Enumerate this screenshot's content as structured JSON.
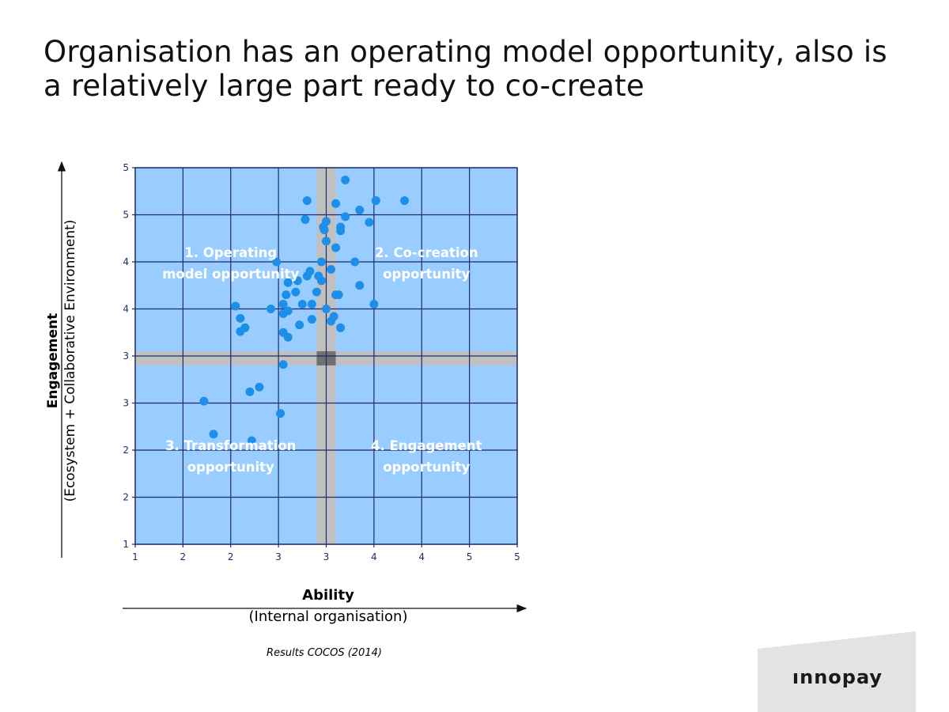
{
  "slide": {
    "title_line1": "Organisation has an operating model opportunity, also is",
    "title_line2": "a relatively large part ready to co-create",
    "source": "Results COCOS (2014)",
    "logo_text": "ınnopay"
  },
  "axes": {
    "x_title": "Ability",
    "x_subtitle": "(Internal organisation)",
    "y_title": "Engagement",
    "y_subtitle": "(Ecosystem + Collaborative Environment)"
  },
  "colors": {
    "plot_bg": "#99ccff",
    "grid": "#1f2a6b",
    "band": "#c0c0c0",
    "band_center": "#707070",
    "point": "#1e8fe8",
    "quadrant_label": "#ffffff"
  },
  "chart_data": {
    "type": "scatter",
    "title": "",
    "xlabel": "Ability",
    "ylabel": "Engagement",
    "xlim": [
      1,
      5
    ],
    "ylim": [
      1,
      5
    ],
    "x_ticks": [
      1,
      1.5,
      2,
      2.5,
      3,
      3.5,
      4,
      4.5,
      5
    ],
    "y_ticks": [
      1,
      1.5,
      2,
      2.5,
      3,
      3.5,
      4,
      4.5,
      5
    ],
    "x_tick_labels": [
      "1",
      "2",
      "2",
      "3",
      "3",
      "4",
      "4",
      "5",
      "5"
    ],
    "y_tick_labels": [
      "1",
      "2",
      "2",
      "3",
      "3",
      "4",
      "4",
      "5",
      "5"
    ],
    "grid": true,
    "threshold_bands": {
      "x": [
        2.9,
        3.1
      ],
      "y": [
        2.9,
        3.05
      ]
    },
    "quadrants": [
      {
        "line1": "1. Operating",
        "line2": "model opportunity",
        "x": 2.0,
        "y": 4.0
      },
      {
        "line1": "2. Co-creation",
        "line2": "opportunity",
        "x": 4.05,
        "y": 4.0
      },
      {
        "line1": "3. Transformation",
        "line2": "opportunity",
        "x": 2.0,
        "y": 1.95
      },
      {
        "line1": "4. Engagement",
        "line2": "opportunity",
        "x": 4.05,
        "y": 1.95
      }
    ],
    "points": [
      [
        3.2,
        4.87
      ],
      [
        2.8,
        4.65
      ],
      [
        3.52,
        4.65
      ],
      [
        3.82,
        4.65
      ],
      [
        3.1,
        4.62
      ],
      [
        3.35,
        4.55
      ],
      [
        3.2,
        4.48
      ],
      [
        2.78,
        4.45
      ],
      [
        3.0,
        4.43
      ],
      [
        3.45,
        4.42
      ],
      [
        2.97,
        4.37
      ],
      [
        3.15,
        4.37
      ],
      [
        2.98,
        4.34
      ],
      [
        3.15,
        4.33
      ],
      [
        3.0,
        4.22
      ],
      [
        2.48,
        4.0
      ],
      [
        2.95,
        4.0
      ],
      [
        3.1,
        4.15
      ],
      [
        3.3,
        4.0
      ],
      [
        2.83,
        3.9
      ],
      [
        3.05,
        3.92
      ],
      [
        3.35,
        3.75
      ],
      [
        2.8,
        3.85
      ],
      [
        2.92,
        3.85
      ],
      [
        2.6,
        3.78
      ],
      [
        2.7,
        3.8
      ],
      [
        2.95,
        3.8
      ],
      [
        2.58,
        3.65
      ],
      [
        2.9,
        3.68
      ],
      [
        3.1,
        3.65
      ],
      [
        2.68,
        3.68
      ],
      [
        2.75,
        3.55
      ],
      [
        2.55,
        3.55
      ],
      [
        2.85,
        3.55
      ],
      [
        3.5,
        3.55
      ],
      [
        2.42,
        3.5
      ],
      [
        2.6,
        3.48
      ],
      [
        2.55,
        3.45
      ],
      [
        3.0,
        3.5
      ],
      [
        3.13,
        3.65
      ],
      [
        2.05,
        3.53
      ],
      [
        2.1,
        3.4
      ],
      [
        2.85,
        3.39
      ],
      [
        3.08,
        3.42
      ],
      [
        2.15,
        3.3
      ],
      [
        2.72,
        3.33
      ],
      [
        2.1,
        3.26
      ],
      [
        2.55,
        3.25
      ],
      [
        2.6,
        3.2
      ],
      [
        3.15,
        3.3
      ],
      [
        3.05,
        3.37
      ],
      [
        2.55,
        2.91
      ],
      [
        2.3,
        2.67
      ],
      [
        2.2,
        2.62
      ],
      [
        1.72,
        2.52
      ],
      [
        2.52,
        2.39
      ],
      [
        1.82,
        2.17
      ],
      [
        2.22,
        2.1
      ]
    ]
  }
}
